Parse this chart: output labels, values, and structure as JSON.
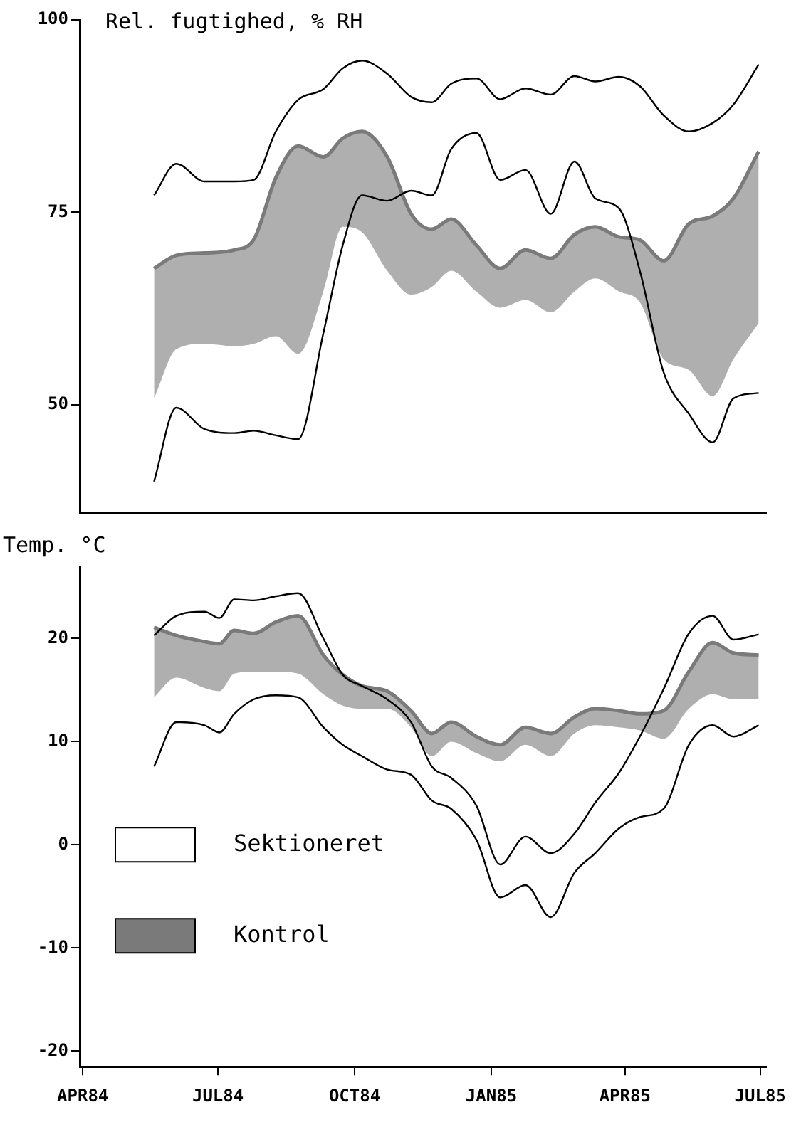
{
  "chart_data": [
    {
      "type": "line",
      "ylabel": "Rel. fugtighed, % RH",
      "xlim": [
        "1984-03-30",
        "1985-07-05"
      ],
      "ylim": [
        36,
        100
      ],
      "yticks": [
        50,
        75,
        100
      ],
      "tick_labels": "y",
      "legend": false,
      "x": [
        "1984-05-19",
        "1984-06-03",
        "1984-06-22",
        "1984-07-12",
        "1984-07-25",
        "1984-08-09",
        "1984-08-24",
        "1984-09-10",
        "1984-09-23",
        "1984-10-06",
        "1984-10-23",
        "1984-11-08",
        "1984-11-22",
        "1984-12-05",
        "1984-12-22",
        "1985-01-07",
        "1985-01-24",
        "1985-02-10",
        "1985-02-26",
        "1985-03-12",
        "1985-03-28",
        "1985-04-11",
        "1985-04-27",
        "1985-05-14",
        "1985-05-30",
        "1985-06-13",
        "1985-06-30"
      ],
      "series": [
        {
          "color": "#000000",
          "values": [
            77.2,
            81.3,
            79,
            79,
            79.2,
            85.5,
            89.6,
            91,
            93.7,
            94.7,
            93,
            90,
            89.3,
            91.7,
            92.4,
            89.7,
            91.1,
            90.3,
            92.7,
            92,
            92.6,
            91.4,
            87.6,
            85.5,
            86.6,
            89,
            94.2
          ]
        },
        {
          "color": "#000000",
          "values": [
            40,
            49.6,
            46.8,
            46.3,
            46.6,
            46,
            45.5,
            59.3,
            70.7,
            77.2,
            76.5,
            77.8,
            77.2,
            83.2,
            85.3,
            79.2,
            80.5,
            74.8,
            81.6,
            76.8,
            75.5,
            67.4,
            54.2,
            48.8,
            45.1,
            50.8,
            51.5
          ]
        },
        {
          "color": "#7a7a7a",
          "values": [
            67.7,
            69.4,
            69.7,
            70.1,
            71.4,
            79.5,
            83.6,
            82.2,
            84.6,
            85.5,
            82.2,
            74.8,
            72.8,
            74.1,
            70.7,
            67.7,
            70.1,
            69,
            72.1,
            73.1,
            71.8,
            71.4,
            68.7,
            73.5,
            74.5,
            76.8,
            82.9
          ],
          "upper": [
            67.7,
            69.4,
            69.7,
            70.1,
            71.4,
            79.5,
            83.6,
            82.2,
            84.6,
            85.5,
            82.2,
            74.8,
            72.8,
            74.1,
            70.7,
            67.7,
            70.1,
            69,
            72.1,
            73.1,
            71.8,
            71.4,
            68.7,
            73.5,
            74.5,
            76.8,
            82.9
          ],
          "lower": [
            50.8,
            57.2,
            57.9,
            57.6,
            57.9,
            58.9,
            56.6,
            64.7,
            73.1,
            72.4,
            67.4,
            64.3,
            65.3,
            67.4,
            64.7,
            62.6,
            63.6,
            62,
            64.7,
            66.4,
            64.7,
            63.3,
            55.9,
            54.5,
            51.1,
            55.9,
            60.6
          ]
        }
      ]
    },
    {
      "type": "line",
      "ylabel": "Temp. °C",
      "xlim": [
        "1984-03-30",
        "1985-07-05"
      ],
      "ylim": [
        -21.5,
        27
      ],
      "yticks": [
        -20,
        -10,
        0,
        10,
        20
      ],
      "legend": "bottom left",
      "xticks": [
        {
          "value": "1984-04-01",
          "label": "APR84"
        },
        {
          "value": "1984-07-01",
          "label": "JUL84"
        },
        {
          "value": "1984-10-01",
          "label": "OCT84"
        },
        {
          "value": "1985-01-01",
          "label": "JAN85"
        },
        {
          "value": "1985-04-01",
          "label": "APR85"
        },
        {
          "value": "1985-07-01",
          "label": "JUL85"
        }
      ],
      "x": [
        "1984-05-19",
        "1984-06-03",
        "1984-06-22",
        "1984-07-02",
        "1984-07-12",
        "1984-07-25",
        "1984-08-09",
        "1984-08-24",
        "1984-09-10",
        "1984-09-23",
        "1984-10-06",
        "1984-10-23",
        "1984-11-08",
        "1984-11-22",
        "1984-12-05",
        "1984-12-22",
        "1985-01-07",
        "1985-01-24",
        "1985-02-10",
        "1985-02-26",
        "1985-03-12",
        "1985-03-28",
        "1985-04-11",
        "1985-04-27",
        "1985-05-14",
        "1985-05-30",
        "1985-06-13",
        "1985-06-30"
      ],
      "series": [
        {
          "name": "Sektioneret",
          "color": "#000000",
          "values": [
            20.3,
            22.2,
            22.6,
            22,
            23.8,
            23.7,
            24.1,
            24.4,
            20,
            16.5,
            15.4,
            14.1,
            11.9,
            7.6,
            6.5,
            3.8,
            -1.9,
            0.8,
            -0.8,
            1.1,
            4.1,
            7,
            10.5,
            15.1,
            20.5,
            22.2,
            19.9,
            20.4
          ]
        },
        {
          "color": "#000000",
          "values": [
            7.6,
            11.9,
            11.6,
            10.9,
            12.7,
            14.1,
            14.5,
            14.3,
            11.4,
            9.7,
            8.6,
            7.3,
            6.8,
            4.3,
            3.5,
            0.5,
            -5.1,
            -3.9,
            -7,
            -2.7,
            -0.8,
            1.6,
            2.7,
            3.5,
            9.7,
            11.6,
            10.5,
            11.6
          ]
        },
        {
          "name": "Kontrol",
          "color": "#7a7a7a",
          "values": [
            21.1,
            20.3,
            19.7,
            19.5,
            20.8,
            20.5,
            21.6,
            22.2,
            18.4,
            16.5,
            15.4,
            14.9,
            13,
            10.8,
            11.9,
            10.5,
            9.7,
            11.4,
            10.8,
            12.4,
            13.2,
            13,
            12.7,
            13,
            16.8,
            19.6,
            18.6,
            18.4
          ],
          "upper": [
            21.1,
            20.3,
            19.7,
            19.5,
            20.8,
            20.5,
            21.6,
            22.2,
            18.4,
            16.5,
            15.4,
            14.9,
            13,
            10.8,
            11.9,
            10.5,
            9.7,
            11.4,
            10.8,
            12.4,
            13.2,
            13,
            12.7,
            13,
            16.8,
            19.6,
            18.6,
            18.4
          ],
          "lower": [
            14.3,
            16.2,
            15.2,
            14.9,
            16.6,
            16.8,
            16.8,
            16.6,
            14.6,
            13.5,
            13.2,
            13.2,
            11.4,
            8.6,
            10,
            8.9,
            8.1,
            9.7,
            8.6,
            10.8,
            11.6,
            11.4,
            11.1,
            10.3,
            13.2,
            14.6,
            14.1,
            14.1
          ]
        }
      ]
    }
  ]
}
